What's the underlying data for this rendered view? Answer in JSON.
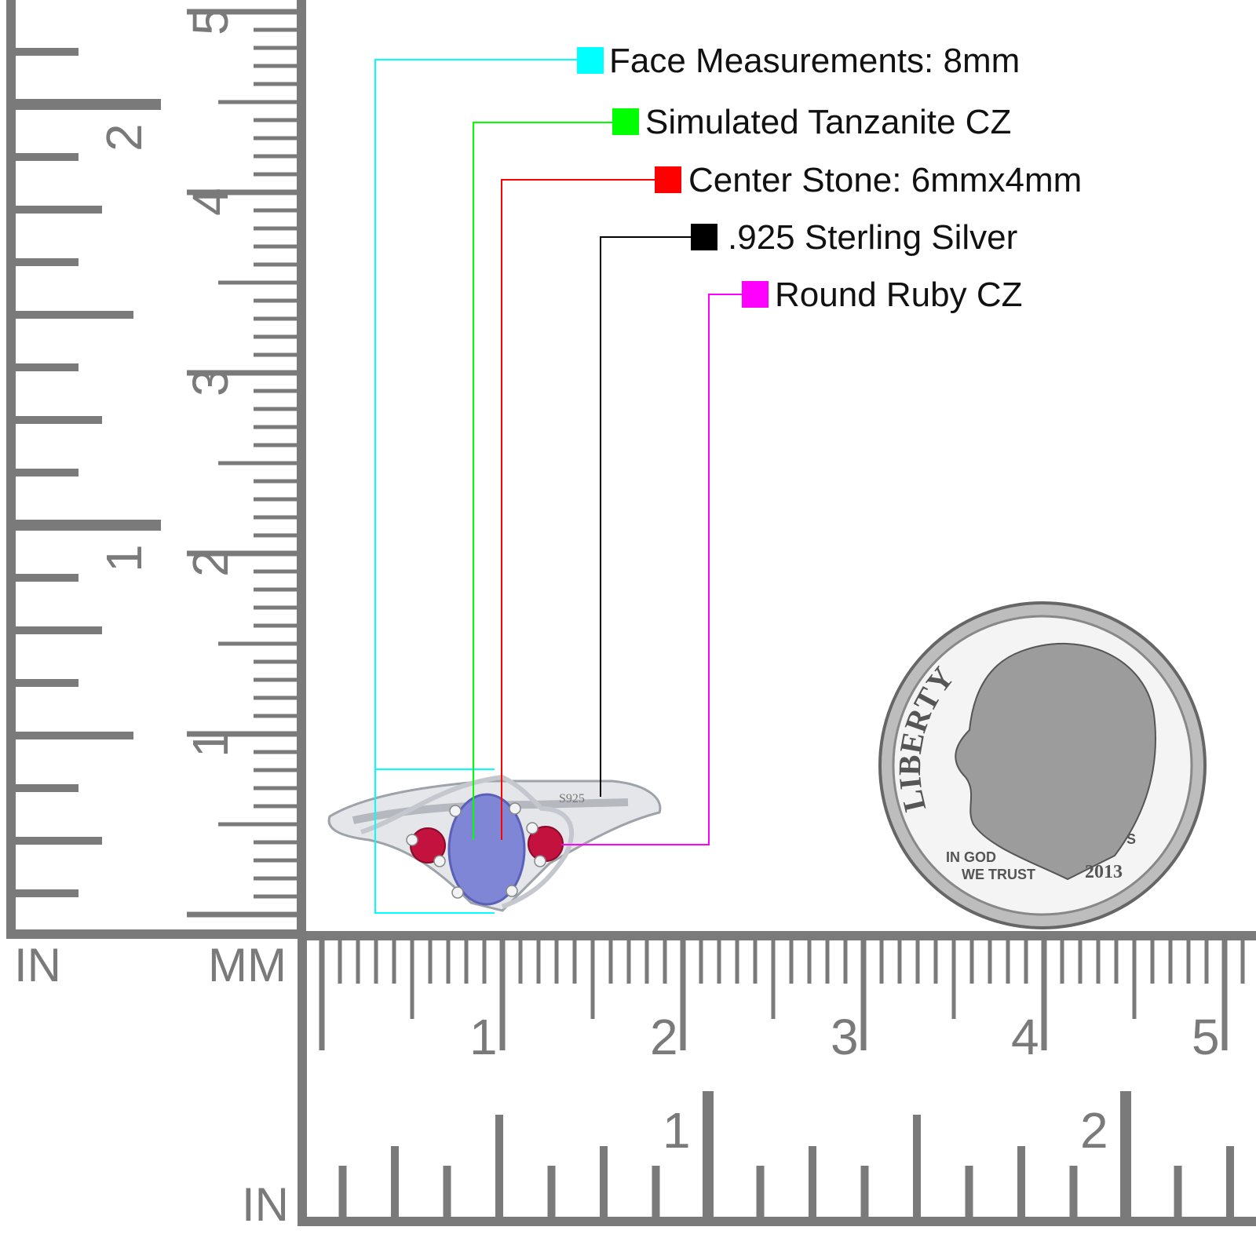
{
  "callouts": [
    {
      "text": "Face Measurements: 8mm",
      "color": "#00ffff"
    },
    {
      "text": "Simulated Tanzanite CZ",
      "color": "#00ff00"
    },
    {
      "text": "Center Stone: 6mmx4mm",
      "color": "#ff0000"
    },
    {
      "text": ".925 Sterling Silver",
      "color": "#000000"
    },
    {
      "text": "Round Ruby CZ",
      "color": "#ff00ff"
    }
  ],
  "ruler": {
    "color": "#7a7a7a",
    "vertical_unit_inch": "IN",
    "vertical_unit_mm": "MM",
    "horizontal_unit_inch": "IN",
    "vertical_cm_labels": [
      "1",
      "2",
      "3",
      "4",
      "5"
    ],
    "vertical_inch_labels": [
      "1",
      "2"
    ],
    "horizontal_cm_labels": [
      "1",
      "2",
      "3",
      "4",
      "5"
    ],
    "horizontal_inch_labels": [
      "1",
      "2"
    ]
  },
  "ring": {
    "stamp": "S925",
    "center_stone_color": "#7f86d6",
    "side_stone_color": "#c4123f"
  },
  "dime": {
    "legend": "LIBERTY",
    "motto_1": "IN GOD",
    "motto_2": "WE TRUST",
    "mint": "S",
    "year": "2013"
  }
}
